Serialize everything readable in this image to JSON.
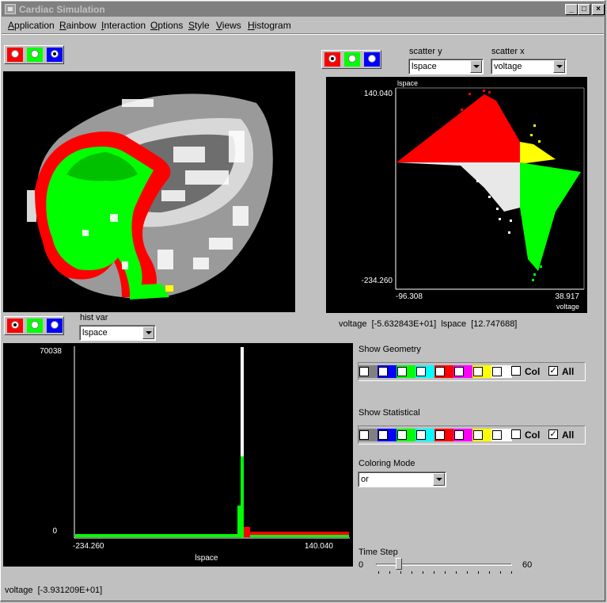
{
  "window": {
    "title": "Cardiac Simulation"
  },
  "menu": [
    "Application",
    "Rainbow",
    "Interaction",
    "Options",
    "Style",
    "Views",
    "Histogram"
  ],
  "menu_underline": [
    "A",
    "R",
    "I",
    "O",
    "S",
    "V",
    "H"
  ],
  "radio_colors": {
    "red": "#ff0000",
    "green": "#00ff00",
    "blue": "#0000ff"
  },
  "geometry_radio_selected": "blue",
  "scatter": {
    "radio_selected": "red",
    "y_label": "scatter y",
    "y_value": "lspace",
    "x_label": "scatter x",
    "x_value": "voltage",
    "ymax": "140.040",
    "ymin": "-234.260",
    "xmin": "-96.308",
    "xmax": "38.917",
    "axis_y_title": "lspace",
    "axis_x_title": "voltage",
    "readout": "voltage  [-5.632843E+01]  lspace  [12.747688]"
  },
  "histogram": {
    "radio_selected": "red",
    "var_label": "hist var",
    "var_value": "lspace",
    "ymax": "70038",
    "ymin": "0",
    "xmin": "-234.260",
    "xmax": "140.040",
    "xtitle": "lspace"
  },
  "show_geometry": {
    "label": "Show Geometry",
    "col_label": "Col",
    "all_label": "All",
    "all_checked": "✓"
  },
  "show_statistical": {
    "label": "Show Statistical",
    "col_label": "Col",
    "all_label": "All",
    "all_checked": "✓"
  },
  "swatch_colors": [
    "#808080",
    "#0000ff",
    "#00ff00",
    "#00ffff",
    "#ff0000",
    "#ff00ff",
    "#ffff00",
    "#ffffff"
  ],
  "coloring_mode": {
    "label": "Coloring Mode",
    "value": "or"
  },
  "time_step": {
    "label": "Time Step",
    "min": "0",
    "max": "60",
    "value": 3
  },
  "status": "voltage  [-3.931209E+01]"
}
